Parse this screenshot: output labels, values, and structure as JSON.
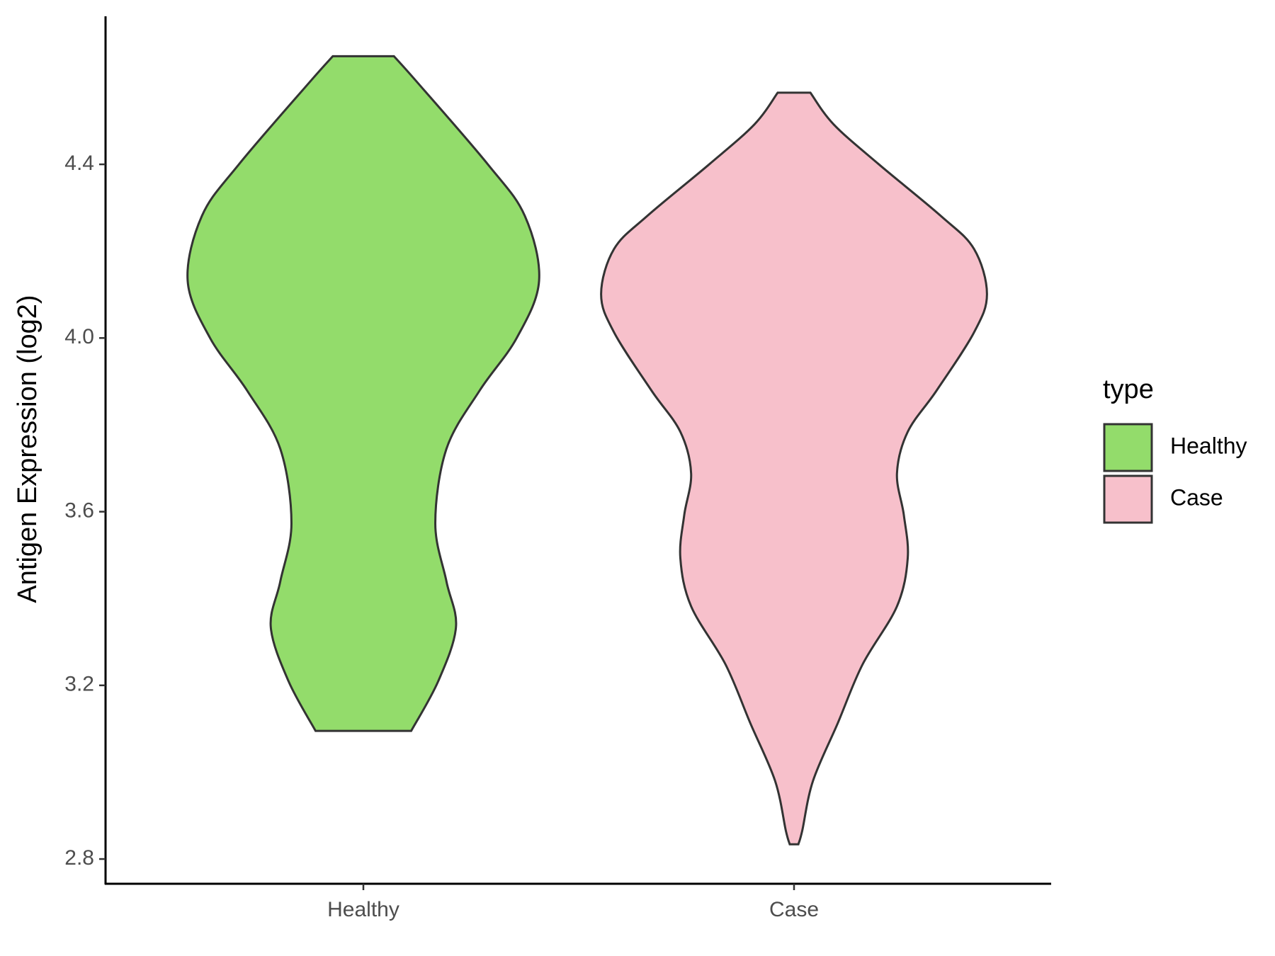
{
  "chart_data": {
    "type": "violin",
    "y_label": "Antigen Expression (log2)",
    "legend_title": "type",
    "categories": [
      "Healthy",
      "Case"
    ],
    "series": [
      {
        "name": "Healthy",
        "color": "#93dc6b",
        "y": [
          4.649,
          4.588,
          4.4,
          4.281,
          4.132,
          4.0,
          3.879,
          3.745,
          3.573,
          3.439,
          3.334,
          3.21,
          3.095
        ],
        "width": [
          0.071,
          0.126,
          0.289,
          0.375,
          0.408,
          0.356,
          0.27,
          0.193,
          0.167,
          0.193,
          0.215,
          0.174,
          0.111
        ]
      },
      {
        "name": "Case",
        "color": "#f7c0cb",
        "y": [
          4.565,
          4.492,
          4.4,
          4.281,
          4.205,
          4.101,
          4.013,
          3.879,
          3.784,
          3.688,
          3.592,
          3.493,
          3.382,
          3.248,
          3.114,
          2.98,
          2.865,
          2.834
        ],
        "width": [
          0.038,
          0.092,
          0.197,
          0.341,
          0.418,
          0.448,
          0.418,
          0.331,
          0.264,
          0.239,
          0.255,
          0.264,
          0.239,
          0.159,
          0.102,
          0.044,
          0.019,
          0.01
        ]
      }
    ],
    "ylim": [
      2.743,
      4.741
    ],
    "yticks": [
      2.8,
      3.2,
      3.6,
      {
        "value": 4,
        "label": "4.0"
      },
      4.4
    ],
    "legend_position": "right"
  }
}
